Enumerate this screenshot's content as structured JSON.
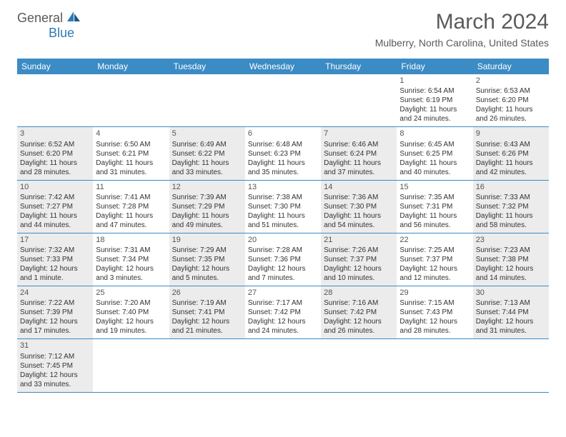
{
  "logo": {
    "general": "General",
    "blue": "Blue"
  },
  "title": "March 2024",
  "location": "Mulberry, North Carolina, United States",
  "colors": {
    "header_bg": "#3b8bc4",
    "header_text": "#ffffff",
    "shaded_cell": "#ececec",
    "border": "#3b8bc4",
    "title_color": "#5a5a5a",
    "logo_gray": "#595959",
    "logo_blue": "#2d7bb8"
  },
  "day_names": [
    "Sunday",
    "Monday",
    "Tuesday",
    "Wednesday",
    "Thursday",
    "Friday",
    "Saturday"
  ],
  "weeks": [
    [
      {
        "day": "",
        "sunrise": "",
        "sunset": "",
        "daylight": ""
      },
      {
        "day": "",
        "sunrise": "",
        "sunset": "",
        "daylight": ""
      },
      {
        "day": "",
        "sunrise": "",
        "sunset": "",
        "daylight": ""
      },
      {
        "day": "",
        "sunrise": "",
        "sunset": "",
        "daylight": ""
      },
      {
        "day": "",
        "sunrise": "",
        "sunset": "",
        "daylight": ""
      },
      {
        "day": "1",
        "sunrise": "Sunrise: 6:54 AM",
        "sunset": "Sunset: 6:19 PM",
        "daylight": "Daylight: 11 hours and 24 minutes."
      },
      {
        "day": "2",
        "sunrise": "Sunrise: 6:53 AM",
        "sunset": "Sunset: 6:20 PM",
        "daylight": "Daylight: 11 hours and 26 minutes."
      }
    ],
    [
      {
        "day": "3",
        "sunrise": "Sunrise: 6:52 AM",
        "sunset": "Sunset: 6:20 PM",
        "daylight": "Daylight: 11 hours and 28 minutes."
      },
      {
        "day": "4",
        "sunrise": "Sunrise: 6:50 AM",
        "sunset": "Sunset: 6:21 PM",
        "daylight": "Daylight: 11 hours and 31 minutes."
      },
      {
        "day": "5",
        "sunrise": "Sunrise: 6:49 AM",
        "sunset": "Sunset: 6:22 PM",
        "daylight": "Daylight: 11 hours and 33 minutes."
      },
      {
        "day": "6",
        "sunrise": "Sunrise: 6:48 AM",
        "sunset": "Sunset: 6:23 PM",
        "daylight": "Daylight: 11 hours and 35 minutes."
      },
      {
        "day": "7",
        "sunrise": "Sunrise: 6:46 AM",
        "sunset": "Sunset: 6:24 PM",
        "daylight": "Daylight: 11 hours and 37 minutes."
      },
      {
        "day": "8",
        "sunrise": "Sunrise: 6:45 AM",
        "sunset": "Sunset: 6:25 PM",
        "daylight": "Daylight: 11 hours and 40 minutes."
      },
      {
        "day": "9",
        "sunrise": "Sunrise: 6:43 AM",
        "sunset": "Sunset: 6:26 PM",
        "daylight": "Daylight: 11 hours and 42 minutes."
      }
    ],
    [
      {
        "day": "10",
        "sunrise": "Sunrise: 7:42 AM",
        "sunset": "Sunset: 7:27 PM",
        "daylight": "Daylight: 11 hours and 44 minutes."
      },
      {
        "day": "11",
        "sunrise": "Sunrise: 7:41 AM",
        "sunset": "Sunset: 7:28 PM",
        "daylight": "Daylight: 11 hours and 47 minutes."
      },
      {
        "day": "12",
        "sunrise": "Sunrise: 7:39 AM",
        "sunset": "Sunset: 7:29 PM",
        "daylight": "Daylight: 11 hours and 49 minutes."
      },
      {
        "day": "13",
        "sunrise": "Sunrise: 7:38 AM",
        "sunset": "Sunset: 7:30 PM",
        "daylight": "Daylight: 11 hours and 51 minutes."
      },
      {
        "day": "14",
        "sunrise": "Sunrise: 7:36 AM",
        "sunset": "Sunset: 7:30 PM",
        "daylight": "Daylight: 11 hours and 54 minutes."
      },
      {
        "day": "15",
        "sunrise": "Sunrise: 7:35 AM",
        "sunset": "Sunset: 7:31 PM",
        "daylight": "Daylight: 11 hours and 56 minutes."
      },
      {
        "day": "16",
        "sunrise": "Sunrise: 7:33 AM",
        "sunset": "Sunset: 7:32 PM",
        "daylight": "Daylight: 11 hours and 58 minutes."
      }
    ],
    [
      {
        "day": "17",
        "sunrise": "Sunrise: 7:32 AM",
        "sunset": "Sunset: 7:33 PM",
        "daylight": "Daylight: 12 hours and 1 minute."
      },
      {
        "day": "18",
        "sunrise": "Sunrise: 7:31 AM",
        "sunset": "Sunset: 7:34 PM",
        "daylight": "Daylight: 12 hours and 3 minutes."
      },
      {
        "day": "19",
        "sunrise": "Sunrise: 7:29 AM",
        "sunset": "Sunset: 7:35 PM",
        "daylight": "Daylight: 12 hours and 5 minutes."
      },
      {
        "day": "20",
        "sunrise": "Sunrise: 7:28 AM",
        "sunset": "Sunset: 7:36 PM",
        "daylight": "Daylight: 12 hours and 7 minutes."
      },
      {
        "day": "21",
        "sunrise": "Sunrise: 7:26 AM",
        "sunset": "Sunset: 7:37 PM",
        "daylight": "Daylight: 12 hours and 10 minutes."
      },
      {
        "day": "22",
        "sunrise": "Sunrise: 7:25 AM",
        "sunset": "Sunset: 7:37 PM",
        "daylight": "Daylight: 12 hours and 12 minutes."
      },
      {
        "day": "23",
        "sunrise": "Sunrise: 7:23 AM",
        "sunset": "Sunset: 7:38 PM",
        "daylight": "Daylight: 12 hours and 14 minutes."
      }
    ],
    [
      {
        "day": "24",
        "sunrise": "Sunrise: 7:22 AM",
        "sunset": "Sunset: 7:39 PM",
        "daylight": "Daylight: 12 hours and 17 minutes."
      },
      {
        "day": "25",
        "sunrise": "Sunrise: 7:20 AM",
        "sunset": "Sunset: 7:40 PM",
        "daylight": "Daylight: 12 hours and 19 minutes."
      },
      {
        "day": "26",
        "sunrise": "Sunrise: 7:19 AM",
        "sunset": "Sunset: 7:41 PM",
        "daylight": "Daylight: 12 hours and 21 minutes."
      },
      {
        "day": "27",
        "sunrise": "Sunrise: 7:17 AM",
        "sunset": "Sunset: 7:42 PM",
        "daylight": "Daylight: 12 hours and 24 minutes."
      },
      {
        "day": "28",
        "sunrise": "Sunrise: 7:16 AM",
        "sunset": "Sunset: 7:42 PM",
        "daylight": "Daylight: 12 hours and 26 minutes."
      },
      {
        "day": "29",
        "sunrise": "Sunrise: 7:15 AM",
        "sunset": "Sunset: 7:43 PM",
        "daylight": "Daylight: 12 hours and 28 minutes."
      },
      {
        "day": "30",
        "sunrise": "Sunrise: 7:13 AM",
        "sunset": "Sunset: 7:44 PM",
        "daylight": "Daylight: 12 hours and 31 minutes."
      }
    ],
    [
      {
        "day": "31",
        "sunrise": "Sunrise: 7:12 AM",
        "sunset": "Sunset: 7:45 PM",
        "daylight": "Daylight: 12 hours and 33 minutes."
      },
      {
        "day": "",
        "sunrise": "",
        "sunset": "",
        "daylight": ""
      },
      {
        "day": "",
        "sunrise": "",
        "sunset": "",
        "daylight": ""
      },
      {
        "day": "",
        "sunrise": "",
        "sunset": "",
        "daylight": ""
      },
      {
        "day": "",
        "sunrise": "",
        "sunset": "",
        "daylight": ""
      },
      {
        "day": "",
        "sunrise": "",
        "sunset": "",
        "daylight": ""
      },
      {
        "day": "",
        "sunrise": "",
        "sunset": "",
        "daylight": ""
      }
    ]
  ],
  "shading": [
    [
      false,
      false,
      false,
      false,
      false,
      false,
      false
    ],
    [
      true,
      false,
      true,
      false,
      true,
      false,
      true
    ],
    [
      true,
      false,
      true,
      false,
      true,
      false,
      true
    ],
    [
      true,
      false,
      true,
      false,
      true,
      false,
      true
    ],
    [
      true,
      false,
      true,
      false,
      true,
      false,
      true
    ],
    [
      true,
      false,
      false,
      false,
      false,
      false,
      false
    ]
  ]
}
